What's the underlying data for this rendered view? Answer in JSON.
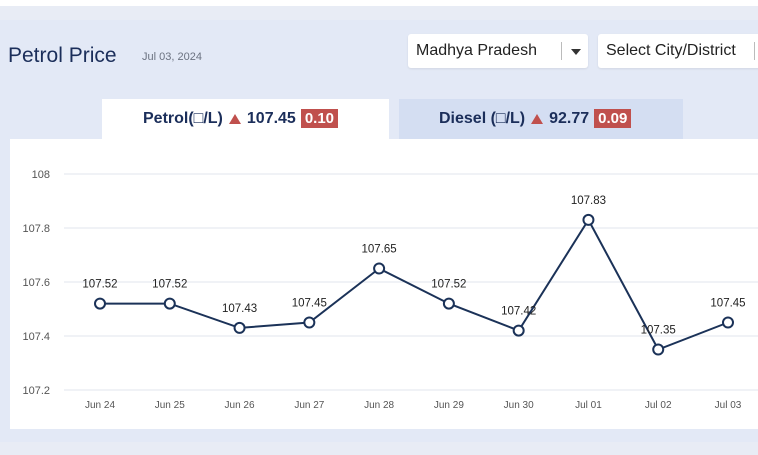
{
  "header": {
    "title": "Petrol Price",
    "date": "Jul 03, 2024"
  },
  "filters": {
    "state": "Madhya Pradesh",
    "city_placeholder": "Select City/District"
  },
  "tabs": [
    {
      "label": "Petrol(□/L)",
      "price": "107.45",
      "change": "0.10"
    },
    {
      "label": "Diesel (□/L)",
      "price": "92.77",
      "change": "0.09"
    }
  ],
  "colors": {
    "line": "#1b3258",
    "accent_badge": "#c0504d",
    "grid": "#e2e6ee"
  },
  "chart_data": {
    "type": "line",
    "categories": [
      "Jun 24",
      "Jun 25",
      "Jun 26",
      "Jun 27",
      "Jun 28",
      "Jun 29",
      "Jun 30",
      "Jul 01",
      "Jul 02",
      "Jul 03"
    ],
    "series": [
      {
        "values": [
          107.52,
          107.52,
          107.43,
          107.45,
          107.65,
          107.52,
          107.42,
          107.83,
          107.35,
          107.45
        ]
      }
    ],
    "data_labels": [
      "107.52",
      "107.52",
      "107.43",
      "107.45",
      "107.65",
      "107.52",
      "107.42",
      "107.83",
      "107.35",
      "107.45"
    ],
    "yticks": [
      "108",
      "107.8",
      "107.6",
      "107.4",
      "107.2"
    ],
    "ylim": [
      107.2,
      108
    ],
    "grid": true,
    "markers": "hollow-circle"
  }
}
